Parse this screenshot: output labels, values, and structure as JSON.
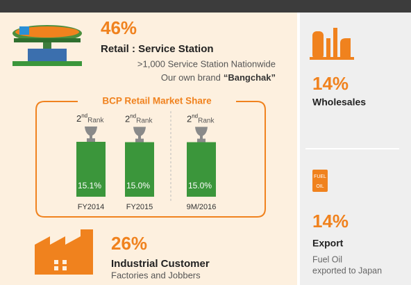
{
  "retail": {
    "share": "46%",
    "title": "Retail : Service Station",
    "line1": ">1,000 Service Station Nationwide",
    "line2": "Our own brand",
    "brand": "“Bangchak”"
  },
  "chart_data": {
    "type": "bar",
    "title": "BCP Retail Market Share",
    "categories": [
      "FY2014",
      "FY2015",
      "9M/2016"
    ],
    "values": [
      15.1,
      15.0,
      15.0
    ],
    "value_labels": [
      "15.1%",
      "15.0%",
      "15.0%"
    ],
    "color": "#3b963b",
    "ranks": [
      {
        "number": "2",
        "suffix": "nd",
        "label": "Rank"
      },
      {
        "number": "2",
        "suffix": "nd",
        "label": "Rank"
      },
      {
        "number": "2",
        "suffix": "nd",
        "label": "Rank"
      }
    ]
  },
  "industrial": {
    "share": "26%",
    "title": "Industrial Customer",
    "subtitle": "Factories and Jobbers"
  },
  "wholesales": {
    "share": "14%",
    "title": "Wholesales"
  },
  "export": {
    "icon_top": "FUEL",
    "icon_bottom": "OIL",
    "share": "14%",
    "title": "Export",
    "line1": "Fuel Oil",
    "line2": "exported to Japan"
  }
}
